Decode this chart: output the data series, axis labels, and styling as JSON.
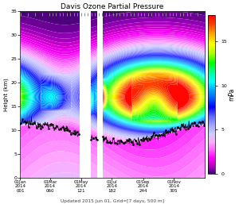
{
  "title": "Davis Ozone Partial Pressure",
  "xlabel_bottom": "Updated 2015 Jun 01, Grid=[7 days, 500 m]",
  "ylabel": "Height (km)",
  "colorbar_label": "mPa",
  "colorbar_ticks": [
    0,
    5,
    10,
    15
  ],
  "ylim": [
    0,
    35
  ],
  "xlim": [
    0,
    365
  ],
  "vmin": 0,
  "vmax": 18,
  "xtick_labels": [
    "01Jan\n2014\n001",
    "01Mar\n2014\n060",
    "01May\n2014\n121",
    "01Jul\n2014\n182",
    "01Sep\n2014\n244",
    "01Nov\n2014\n305"
  ],
  "xtick_positions": [
    0,
    59,
    120,
    181,
    243,
    304
  ],
  "background_color": "#ffffff",
  "tropo_base_height": 9.5,
  "strat_peak_height": 17.0,
  "strat_peak_value": 14.0,
  "tropo_value": 3.5
}
